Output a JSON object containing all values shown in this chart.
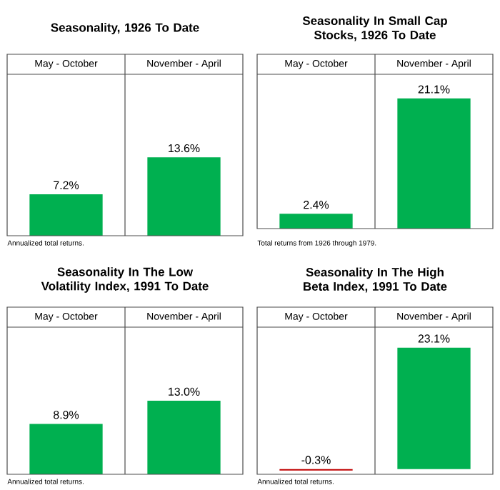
{
  "chart_data": [
    {
      "type": "bar",
      "title": "Seasonality, 1926 To Date",
      "categories": [
        "May - October",
        "November - April"
      ],
      "values": [
        7.2,
        13.6
      ],
      "value_labels": [
        "7.2%",
        "13.6%"
      ],
      "colors": [
        "#00b050",
        "#00b050"
      ],
      "ylim": [
        0,
        28
      ],
      "annotations": [
        "Annualized total returns."
      ]
    },
    {
      "type": "bar",
      "title": "Seasonality In Small Cap Stocks, 1926 To Date",
      "categories": [
        "May - October",
        "November - April"
      ],
      "values": [
        2.4,
        21.1
      ],
      "value_labels": [
        "2.4%",
        "21.1%"
      ],
      "colors": [
        "#00b050",
        "#00b050"
      ],
      "ylim": [
        0,
        25
      ],
      "annotations": [
        "Total returns from 1926 through 1979."
      ]
    },
    {
      "type": "bar",
      "title": "Seasonality In The Low Volatility Index, 1991 To Date",
      "categories": [
        "May - October",
        "November - April"
      ],
      "values": [
        8.9,
        13.0
      ],
      "value_labels": [
        "8.9%",
        "13.0%"
      ],
      "colors": [
        "#00b050",
        "#00b050"
      ],
      "ylim": [
        0,
        26
      ],
      "annotations": [
        "Annualized total returns."
      ]
    },
    {
      "type": "bar",
      "title": "Seasonality In The High Beta Index, 1991 To Date",
      "categories": [
        "May - October",
        "November - April"
      ],
      "values": [
        -0.3,
        23.1
      ],
      "value_labels": [
        "-0.3%",
        "23.1%"
      ],
      "colors": [
        "#c00000",
        "#00b050"
      ],
      "ylim": [
        -1,
        27
      ],
      "annotations": [
        "Annualized total returns."
      ]
    }
  ]
}
